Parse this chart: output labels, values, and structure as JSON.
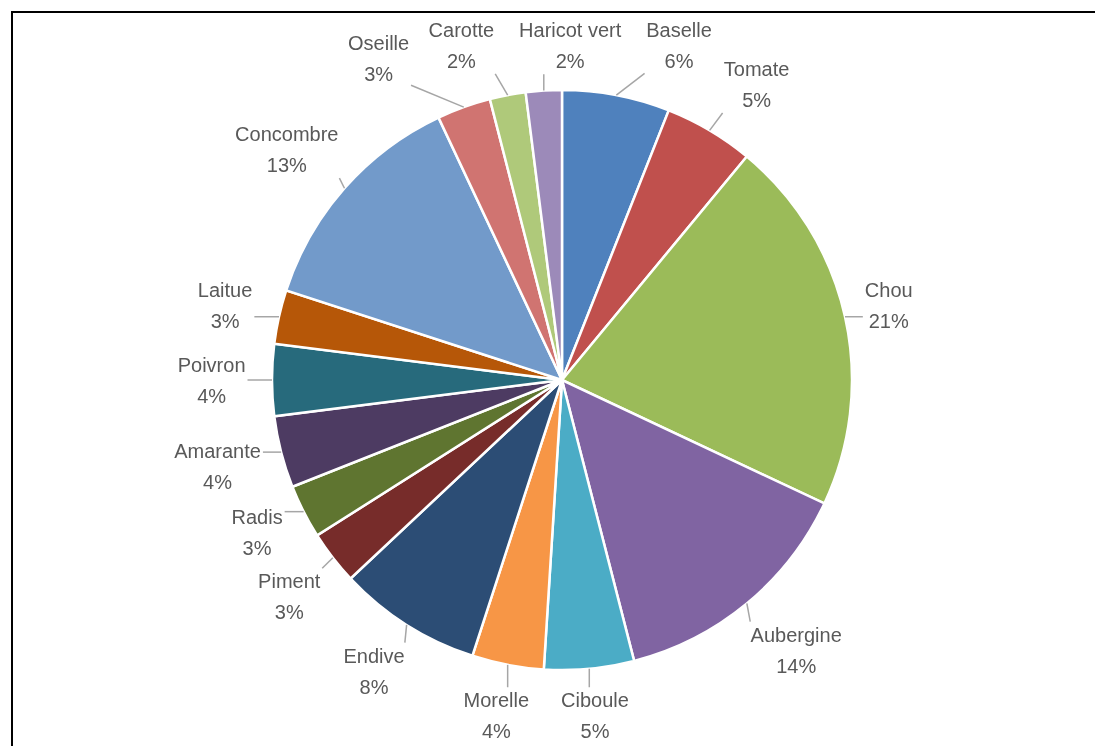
{
  "chart_data": {
    "type": "pie",
    "categories": [
      "Baselle",
      "Tomate",
      "Chou",
      "Aubergine",
      "Ciboule",
      "Morelle",
      "Endive",
      "Piment",
      "Radis",
      "Amarante",
      "Poivron",
      "Laitue",
      "Concombre",
      "Oseille",
      "Carotte",
      "Haricot vert"
    ],
    "values": [
      6,
      5,
      21,
      14,
      5,
      4,
      8,
      3,
      3,
      4,
      4,
      3,
      13,
      3,
      2,
      2
    ],
    "colors": [
      "#4f81bd",
      "#c0504d",
      "#9bbb59",
      "#8064a2",
      "#4bacc6",
      "#f79646",
      "#2c4d75",
      "#772c2a",
      "#5f7530",
      "#4d3b62",
      "#276a7c",
      "#b65708",
      "#729aca",
      "#d07471",
      "#afc97a",
      "#9c8ab9"
    ],
    "value_labels": [
      "6%",
      "5%",
      "21%",
      "14%",
      "5%",
      "4%",
      "8%",
      "3%",
      "3%",
      "4%",
      "4%",
      "3%",
      "13%",
      "3%",
      "2%",
      "2%"
    ]
  }
}
